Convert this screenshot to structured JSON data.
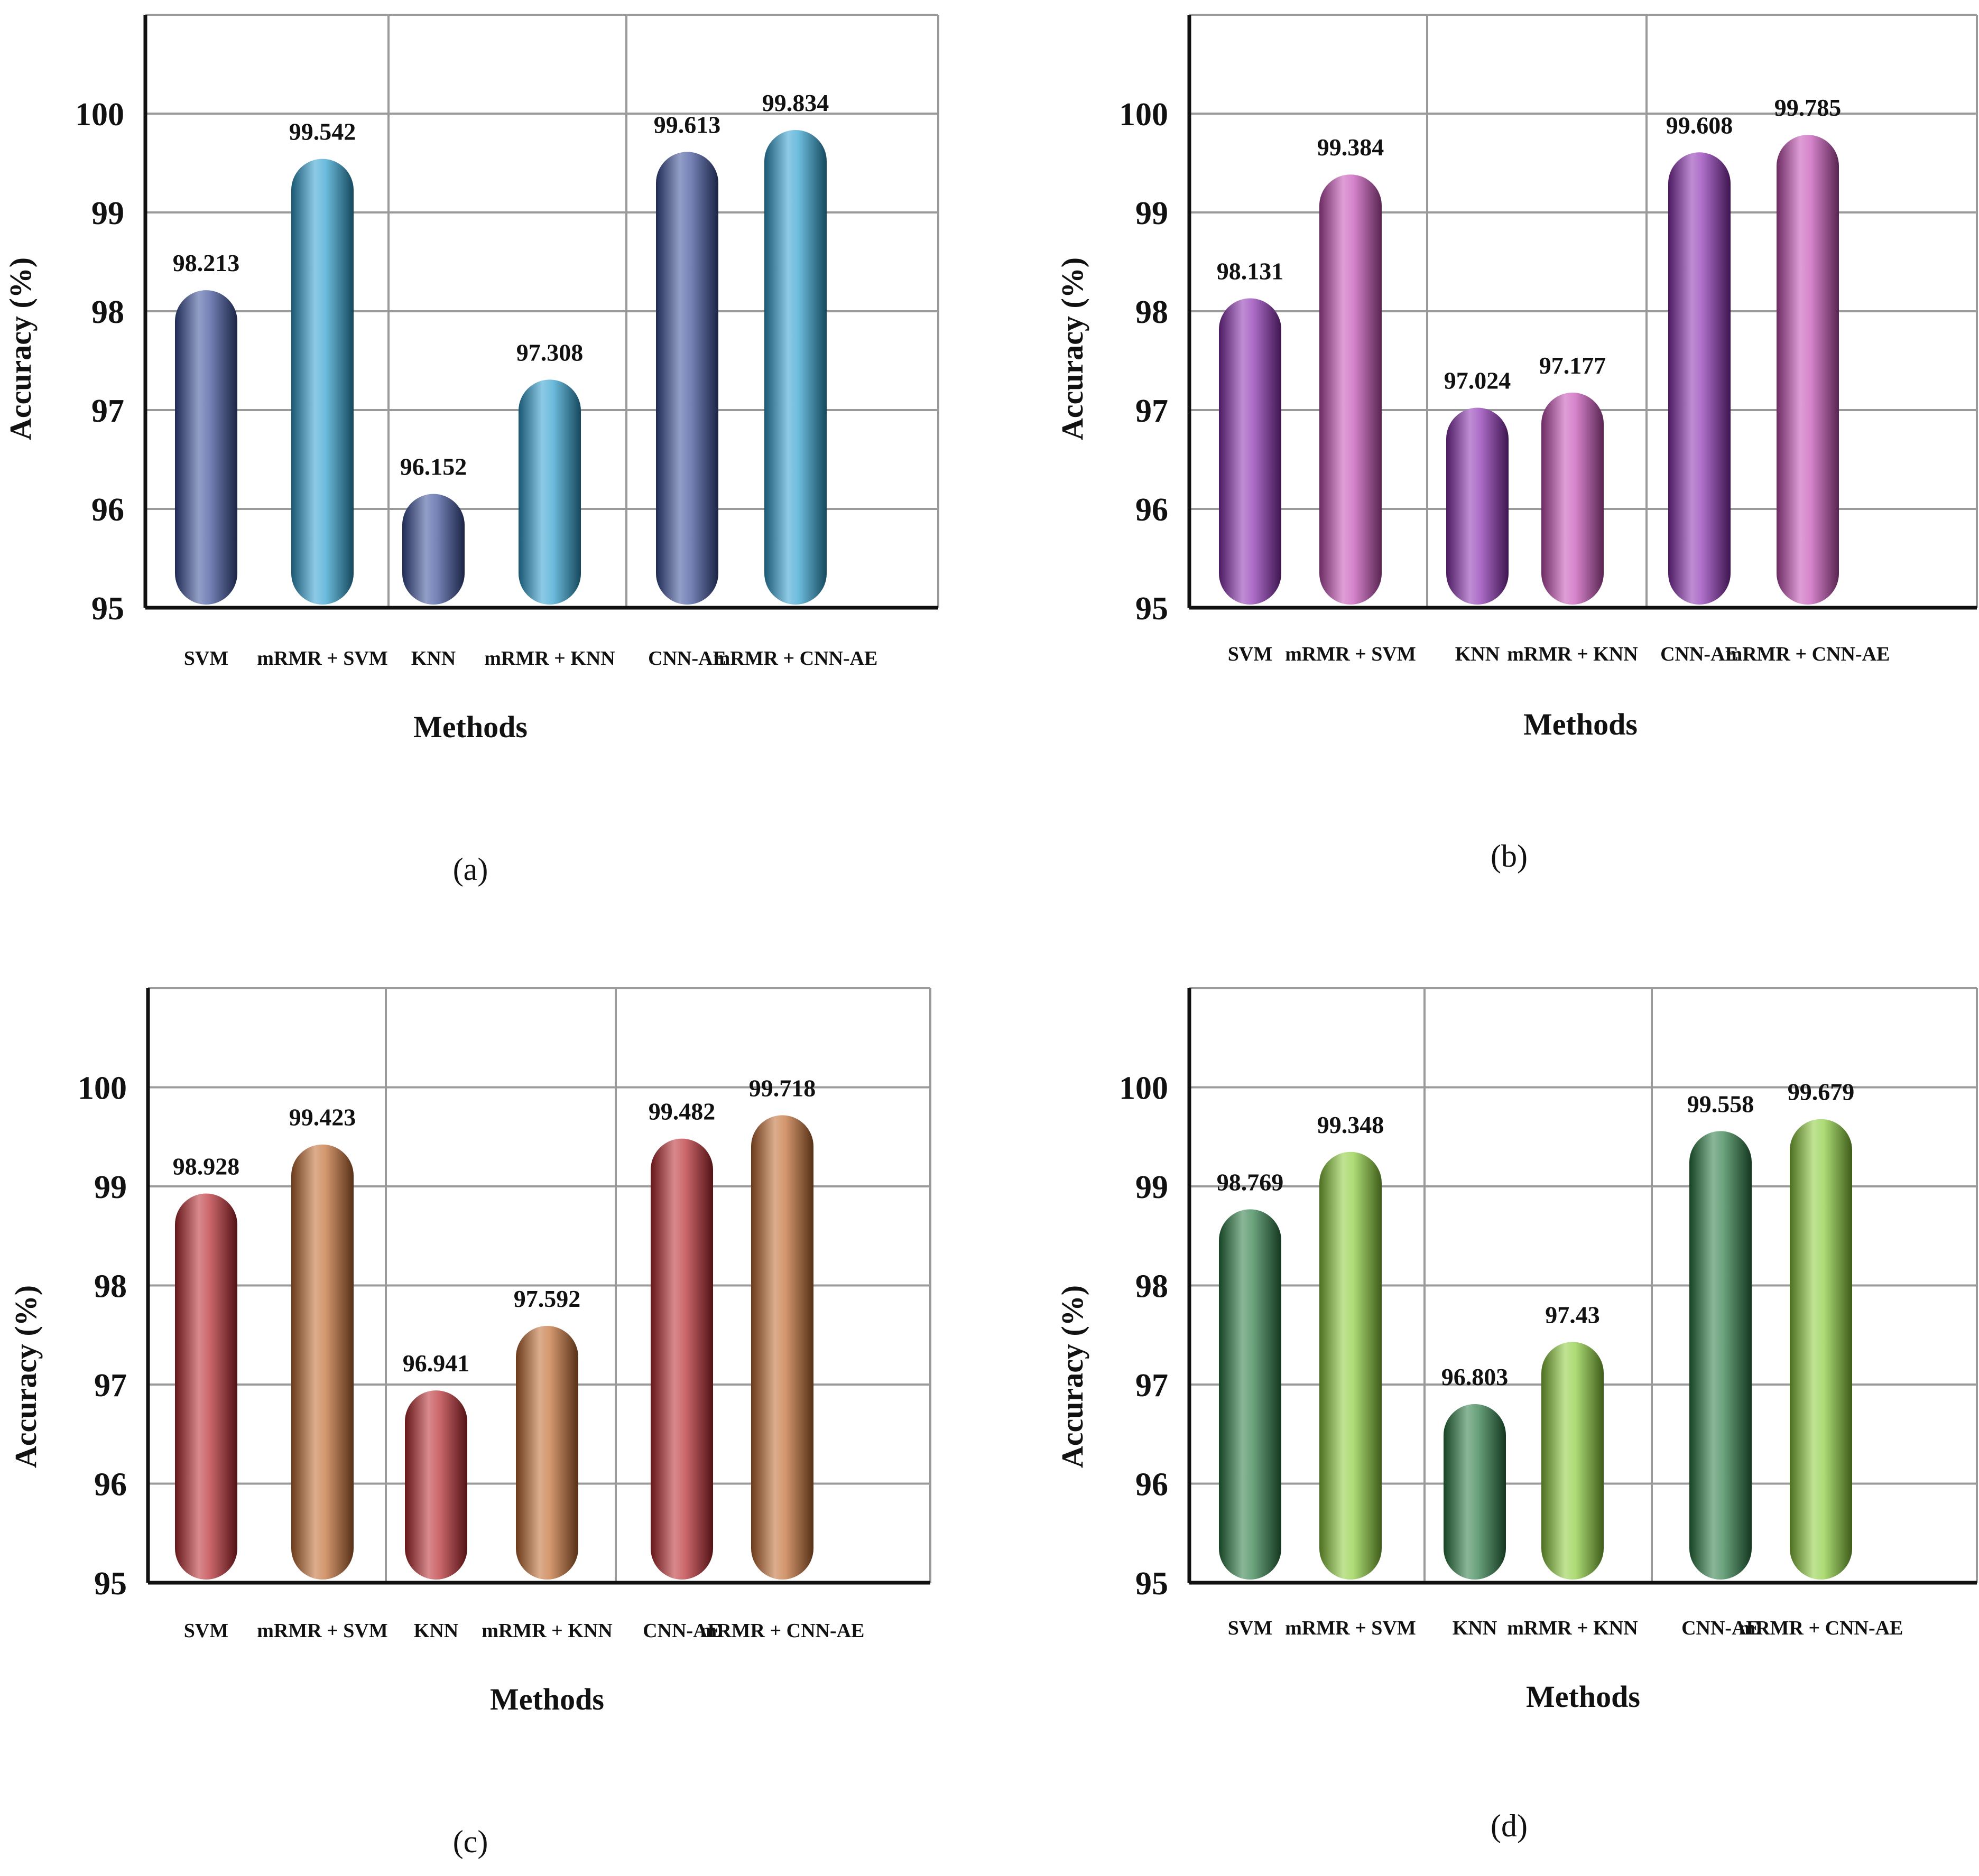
{
  "chart_data": [
    {
      "type": "bar",
      "panel_label": "(a)",
      "categories": [
        "SVM",
        "mRMR + SVM",
        "KNN",
        "mRMR + KNN",
        "CNN-AE",
        "mRMR + CNN-AE"
      ],
      "values": [
        98.213,
        99.542,
        96.152,
        97.308,
        99.613,
        99.834
      ],
      "value_labels": [
        "98.213",
        "99.542",
        "96.152",
        "97.308",
        "99.613",
        "99.834"
      ],
      "xlabel": "Methods",
      "ylabel": "Accuracy (%)",
      "ylim": [
        95,
        101
      ],
      "yticks": [
        "95",
        "96",
        "97",
        "98",
        "99",
        "100"
      ],
      "grid": true,
      "colors": [
        "#3b4f9a",
        "#2f9fcf"
      ]
    },
    {
      "type": "bar",
      "panel_label": "(b)",
      "categories": [
        "SVM",
        "mRMR + SVM",
        "KNN",
        "mRMR + KNN",
        "CNN-AE",
        "mRMR + CNN-AE"
      ],
      "values": [
        98.131,
        99.384,
        97.024,
        97.177,
        99.608,
        99.785
      ],
      "value_labels": [
        "98.131",
        "99.384",
        "97.024",
        "97.177",
        "99.608",
        "99.785"
      ],
      "xlabel": "Methods",
      "ylabel": "Accuracy (%)",
      "ylim": [
        95,
        101
      ],
      "yticks": [
        "95",
        "96",
        "97",
        "98",
        "99",
        "100"
      ],
      "grid": true,
      "colors": [
        "#8a2fb0",
        "#c44fb4"
      ]
    },
    {
      "type": "bar",
      "panel_label": "(c)",
      "categories": [
        "SVM",
        "mRMR + SVM",
        "KNN",
        "mRMR + KNN",
        "CNN-AE",
        "mRMR + CNN-AE"
      ],
      "values": [
        98.928,
        99.423,
        96.941,
        97.592,
        99.482,
        99.718
      ],
      "value_labels": [
        "98.928",
        "99.423",
        "96.941",
        "97.592",
        "99.482",
        "99.718"
      ],
      "xlabel": "Methods",
      "ylabel": "Accuracy (%)",
      "ylim": [
        95,
        101
      ],
      "yticks": [
        "95",
        "96",
        "97",
        "98",
        "99",
        "100"
      ],
      "grid": true,
      "colors": [
        "#b8282e",
        "#c06a30"
      ]
    },
    {
      "type": "bar",
      "panel_label": "(d)",
      "categories": [
        "SVM",
        "mRMR + SVM",
        "KNN",
        "mRMR + KNN",
        "CNN-AE",
        "mRMR + CNN-AE"
      ],
      "values": [
        98.769,
        99.348,
        96.803,
        97.43,
        99.558,
        99.679
      ],
      "value_labels": [
        "98.769",
        "99.348",
        "96.803",
        "97.43",
        "99.558",
        "99.679"
      ],
      "xlabel": "Methods",
      "ylabel": "Accuracy (%)",
      "ylim": [
        95,
        101
      ],
      "yticks": [
        "95",
        "96",
        "97",
        "98",
        "99",
        "100"
      ],
      "grid": true,
      "colors": [
        "#2a7a44",
        "#8acc3a"
      ]
    }
  ]
}
